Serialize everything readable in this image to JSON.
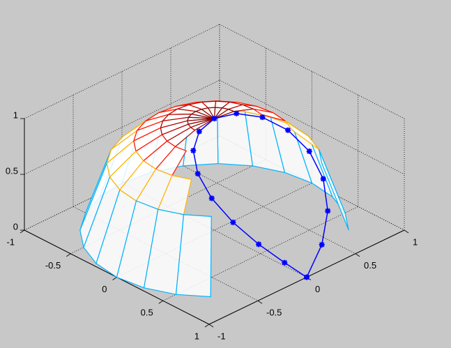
{
  "chart_data": {
    "type": "surface",
    "colormap": "jet",
    "grid": true,
    "xlim": [
      -1,
      1
    ],
    "ylim": [
      -1,
      1
    ],
    "zlim": [
      0,
      1
    ],
    "xticks": [
      -1,
      -0.5,
      0,
      0.5,
      1
    ],
    "yticks": [
      -1,
      -0.5,
      0,
      0.5,
      1
    ],
    "zticks": [
      0,
      0.5,
      1
    ],
    "r": [
      0,
      0.2,
      0.4,
      0.6,
      0.8,
      1
    ],
    "theta": [
      0,
      15,
      30,
      45,
      60,
      75,
      90,
      105,
      120,
      135,
      150,
      165,
      180,
      195,
      210,
      225,
      240,
      255,
      270,
      285,
      300,
      315,
      330,
      345
    ],
    "z": [
      [
        1,
        1,
        1,
        1,
        1,
        1,
        1,
        1,
        1,
        1,
        1,
        1,
        1,
        1,
        1,
        1,
        1,
        1,
        1,
        1,
        1,
        1,
        1,
        1
      ],
      [
        null,
        null,
        null,
        null,
        null,
        null,
        0.98,
        0.98,
        0.98,
        0.98,
        0.98,
        0.98,
        0.98,
        0.98,
        0.98,
        0.98,
        0.98,
        0.98,
        0.98,
        null,
        null,
        null,
        null,
        null
      ],
      [
        null,
        null,
        null,
        null,
        null,
        0.917,
        0.917,
        0.917,
        0.917,
        0.917,
        0.917,
        0.917,
        0.917,
        0.917,
        0.917,
        0.917,
        0.917,
        0.917,
        0.917,
        0.917,
        null,
        null,
        null,
        null
      ],
      [
        null,
        null,
        null,
        null,
        0.8,
        0.8,
        0.8,
        0.8,
        0.8,
        0.8,
        0.8,
        0.8,
        0.8,
        0.8,
        0.8,
        0.8,
        0.8,
        0.8,
        0.8,
        0.8,
        0.8,
        null,
        null,
        null
      ],
      [
        null,
        null,
        null,
        0.6,
        0.6,
        0.6,
        0.6,
        0.6,
        0.6,
        0.6,
        0.6,
        0.6,
        0.6,
        0.6,
        0.6,
        0.6,
        0.6,
        0.6,
        0.6,
        0.6,
        0.6,
        0.6,
        null,
        null
      ],
      [
        0,
        0,
        0,
        0,
        0,
        0,
        0,
        0,
        0,
        0,
        0,
        0,
        0,
        0,
        0,
        0,
        0,
        0,
        0,
        0,
        0,
        0,
        0,
        0
      ]
    ],
    "series": [
      {
        "color": "#0000ff",
        "marker": "*",
        "x": [
          1,
          0.962,
          0.854,
          0.691,
          0.5,
          0.309,
          0.146,
          0.038,
          0,
          0.038,
          0.146,
          0.309,
          0.5,
          0.691,
          0.854,
          0.962,
          1
        ],
        "y": [
          0,
          0.191,
          0.354,
          0.462,
          0.5,
          0.462,
          0.354,
          0.191,
          0,
          -0.191,
          -0.354,
          -0.462,
          -0.5,
          -0.462,
          -0.354,
          -0.191,
          0
        ],
        "z": [
          0,
          0.195,
          0.383,
          0.556,
          0.707,
          0.831,
          0.924,
          0.981,
          1,
          0.981,
          0.924,
          0.831,
          0.707,
          0.556,
          0.383,
          0.195,
          0
        ]
      }
    ]
  }
}
